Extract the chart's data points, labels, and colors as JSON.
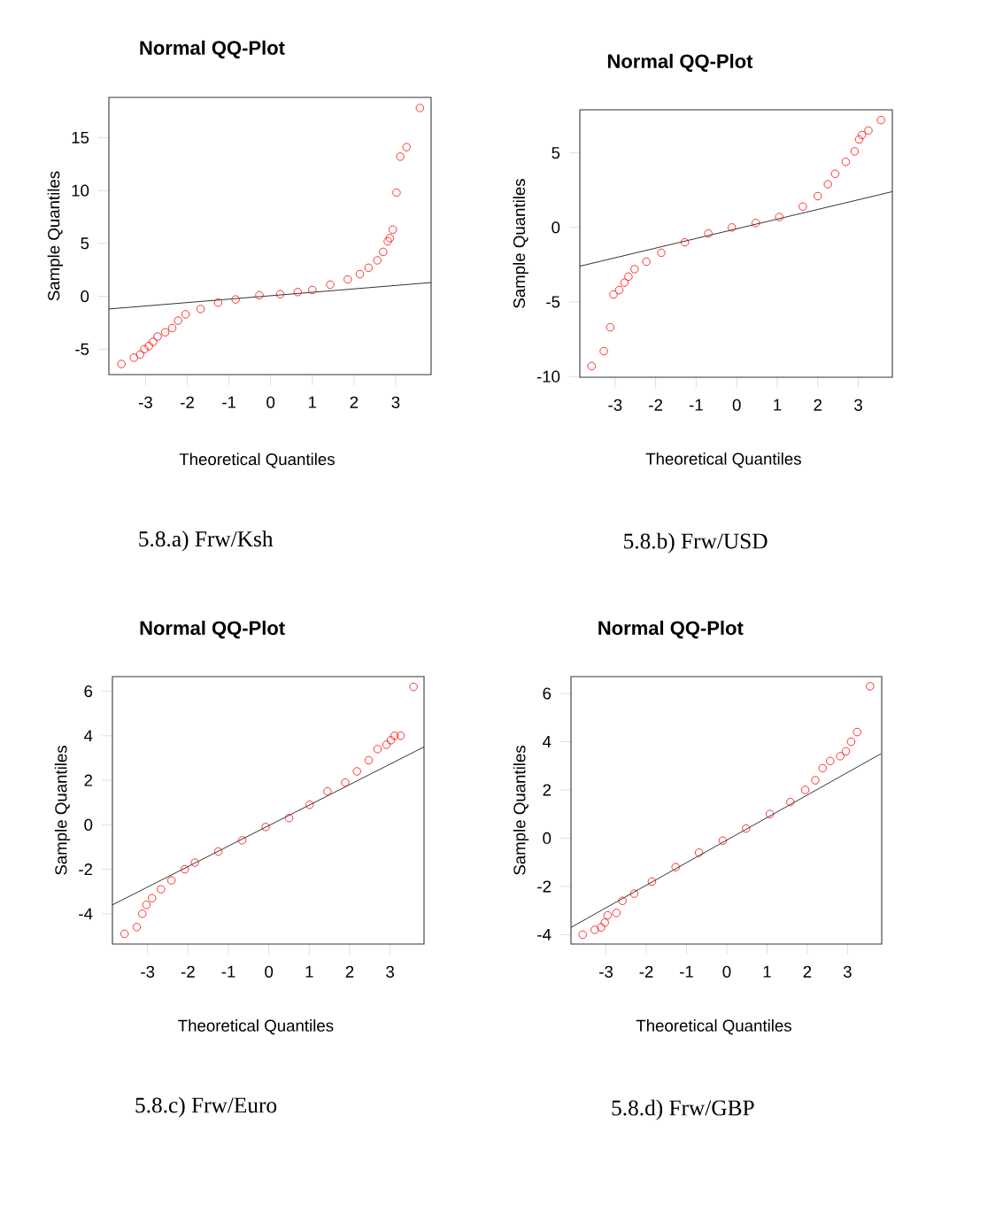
{
  "chart_data": [
    {
      "type": "scatter",
      "title": "Normal QQ-Plot",
      "xlabel": "Theoretical Quantiles",
      "ylabel": "Sample Quantiles",
      "annotations": [
        "5.8.a) Frw/Ksh"
      ],
      "xlim": [
        -3.88,
        3.85
      ],
      "ylim": [
        -7.4,
        18.8
      ],
      "xticks": [
        -3,
        -2,
        -1,
        0,
        1,
        2,
        3
      ],
      "yticks": [
        -5,
        0,
        5,
        10,
        15
      ],
      "series": [
        {
          "color": "#ff0000",
          "marker": "circle",
          "x": [
            -3.58,
            -3.28,
            -3.13,
            -3.03,
            -2.92,
            -2.82,
            -2.71,
            -2.53,
            -2.36,
            -2.22,
            -2.04,
            -1.68,
            -1.26,
            -0.84,
            -0.27,
            0.23,
            0.65,
            1.0,
            1.43,
            1.85,
            2.14,
            2.35,
            2.56,
            2.7,
            2.81,
            2.86,
            2.93,
            3.02,
            3.11,
            3.26,
            3.58
          ],
          "values": [
            -6.4,
            -5.8,
            -5.5,
            -5.0,
            -4.7,
            -4.3,
            -3.8,
            -3.4,
            -3.0,
            -2.3,
            -1.7,
            -1.2,
            -0.6,
            -0.3,
            0.1,
            0.2,
            0.4,
            0.6,
            1.1,
            1.6,
            2.1,
            2.7,
            3.4,
            4.2,
            5.2,
            5.5,
            6.3,
            9.8,
            13.2,
            14.1,
            17.8
          ]
        },
        {
          "type": "line",
          "color": "#000000",
          "x": [
            -3.88,
            3.85
          ],
          "values": [
            -1.2,
            1.3
          ]
        }
      ]
    },
    {
      "type": "scatter",
      "title": "Normal QQ-Plot",
      "xlabel": "Theoretical Quantiles",
      "ylabel": "Sample Quantiles",
      "annotations": [
        "5.8.b) Frw/USD"
      ],
      "xlim": [
        -3.87,
        3.84
      ],
      "ylim": [
        -10.05,
        7.89
      ],
      "xticks": [
        -3,
        -2,
        -1,
        0,
        1,
        2,
        3
      ],
      "yticks": [
        -10,
        -5,
        0,
        5
      ],
      "series": [
        {
          "color": "#ff0000",
          "marker": "circle",
          "x": [
            -3.58,
            -3.28,
            -3.12,
            -3.04,
            -2.9,
            -2.77,
            -2.67,
            -2.52,
            -2.23,
            -1.86,
            -1.28,
            -0.7,
            -0.12,
            0.47,
            1.05,
            1.63,
            2.0,
            2.25,
            2.43,
            2.69,
            2.91,
            3.02,
            3.09,
            3.25,
            3.56
          ],
          "values": [
            -9.3,
            -8.3,
            -6.7,
            -4.5,
            -4.2,
            -3.7,
            -3.3,
            -2.8,
            -2.3,
            -1.7,
            -1.0,
            -0.4,
            0.0,
            0.3,
            0.7,
            1.4,
            2.1,
            2.9,
            3.6,
            4.4,
            5.1,
            5.9,
            6.2,
            6.5,
            7.2
          ]
        },
        {
          "type": "line",
          "color": "#000000",
          "x": [
            -3.87,
            3.84
          ],
          "values": [
            -2.6,
            2.4
          ]
        }
      ]
    },
    {
      "type": "scatter",
      "title": "Normal QQ-Plot",
      "xlabel": "Theoretical Quantiles",
      "ylabel": "Sample Quantiles",
      "annotations": [
        "5.8.c) Frw/Euro"
      ],
      "xlim": [
        -3.87,
        3.84
      ],
      "ylim": [
        -5.36,
        6.66
      ],
      "xticks": [
        -3,
        -2,
        -1,
        0,
        1,
        2,
        3
      ],
      "yticks": [
        -4,
        -2,
        0,
        2,
        4,
        6
      ],
      "series": [
        {
          "color": "#ff0000",
          "marker": "circle",
          "x": [
            -3.57,
            -3.27,
            -3.13,
            -3.03,
            -2.89,
            -2.67,
            -2.41,
            -2.08,
            -1.83,
            -1.25,
            -0.66,
            -0.08,
            0.5,
            1.01,
            1.45,
            1.89,
            2.18,
            2.47,
            2.69,
            2.91,
            3.02,
            3.11,
            3.26,
            3.58
          ],
          "values": [
            -4.9,
            -4.6,
            -4.0,
            -3.6,
            -3.3,
            -2.9,
            -2.5,
            -2.0,
            -1.7,
            -1.2,
            -0.7,
            -0.1,
            0.3,
            0.9,
            1.5,
            1.9,
            2.4,
            2.9,
            3.4,
            3.6,
            3.8,
            4.0,
            4.0,
            6.2
          ]
        },
        {
          "type": "line",
          "color": "#000000",
          "x": [
            -3.87,
            3.84
          ],
          "values": [
            -3.6,
            3.5
          ]
        }
      ]
    },
    {
      "type": "scatter",
      "title": "Normal QQ-Plot",
      "xlabel": "Theoretical Quantiles",
      "ylabel": "Sample Quantiles",
      "annotations": [
        "5.8.d) Frw/GBP"
      ],
      "xlim": [
        -3.87,
        3.85
      ],
      "ylim": [
        -4.39,
        6.7
      ],
      "xticks": [
        -3,
        -2,
        -1,
        0,
        1,
        2,
        3
      ],
      "yticks": [
        -4,
        -2,
        0,
        2,
        4,
        6
      ],
      "series": [
        {
          "color": "#ff0000",
          "marker": "circle",
          "x": [
            -3.58,
            -3.28,
            -3.12,
            -3.03,
            -2.96,
            -2.74,
            -2.59,
            -2.3,
            -1.86,
            -1.27,
            -0.69,
            -0.1,
            0.48,
            1.07,
            1.58,
            1.95,
            2.2,
            2.38,
            2.57,
            2.82,
            2.96,
            3.09,
            3.24,
            3.56
          ],
          "values": [
            -4.0,
            -3.8,
            -3.7,
            -3.5,
            -3.2,
            -3.1,
            -2.6,
            -2.3,
            -1.8,
            -1.2,
            -0.6,
            -0.1,
            0.4,
            1.0,
            1.5,
            2.0,
            2.4,
            2.9,
            3.2,
            3.4,
            3.6,
            4.0,
            4.4,
            6.3
          ]
        },
        {
          "type": "line",
          "color": "#000000",
          "x": [
            -3.87,
            3.83
          ],
          "values": [
            -3.7,
            3.5
          ]
        }
      ]
    }
  ]
}
